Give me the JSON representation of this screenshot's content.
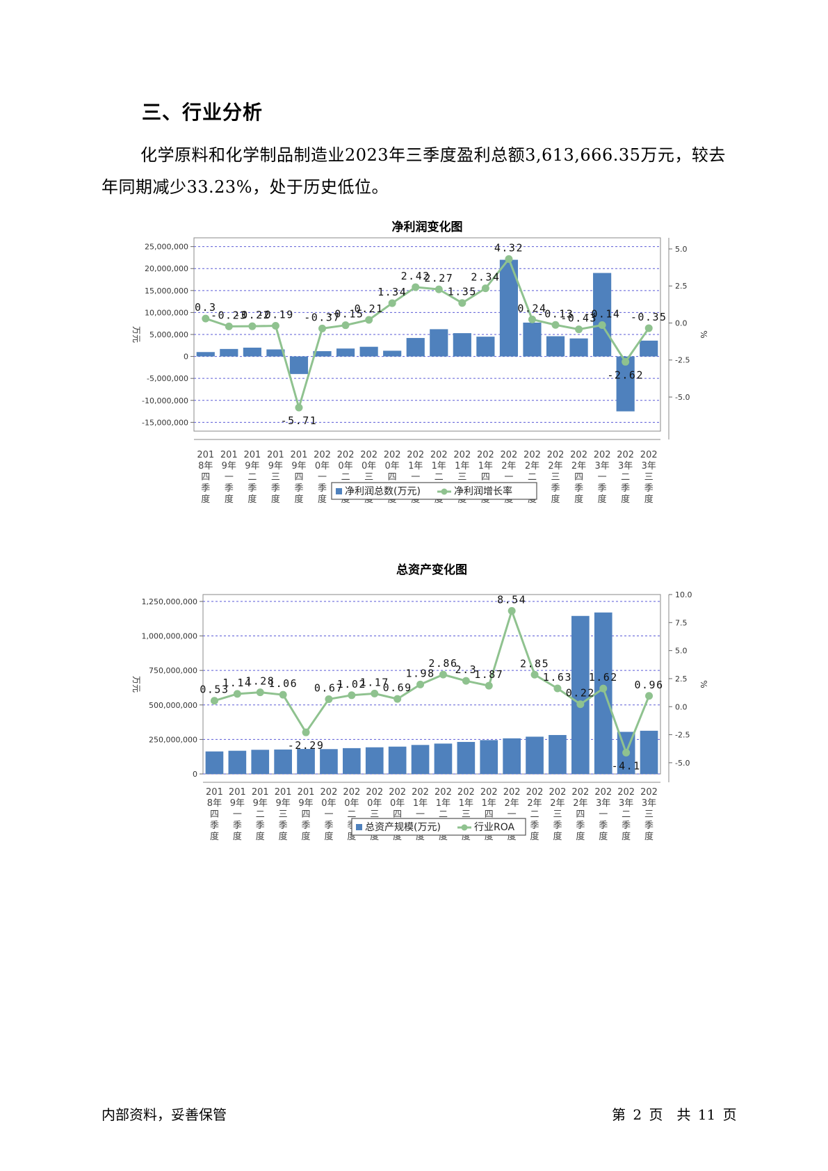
{
  "heading": "三、行业分析",
  "paragraph": "化学原料和化学制品制造业2023年三季度盈利总额3,613,666.35万元，较去年同期减少33.23%，处于历史低位。",
  "footer": {
    "left": "内部资料，妥善保管",
    "right": "第 2 页　共 11 页"
  },
  "chart_data": [
    {
      "type": "bar",
      "title": "净利润变化图",
      "ylabel": "万元",
      "y2label": "%",
      "categories": [
        "2018年四季度",
        "2019年一季度",
        "2019年二季度",
        "2019年三季度",
        "2019年四季度",
        "2020年一季度",
        "2020年二季度",
        "2020年三季度",
        "2020年四季度",
        "2021年一季度",
        "2021年二季度",
        "2021年三季度",
        "2021年四季度",
        "2022年一季度",
        "2022年二季度",
        "2022年三季度",
        "2022年四季度",
        "2023年一季度",
        "2023年二季度",
        "2023年三季度"
      ],
      "category_lines": [
        [
          "201",
          "8年",
          "四",
          "季",
          "度"
        ],
        [
          "201",
          "9年",
          "一",
          "季",
          "度"
        ],
        [
          "201",
          "9年",
          "二",
          "季",
          "度"
        ],
        [
          "201",
          "9年",
          "三",
          "季",
          "度"
        ],
        [
          "201",
          "9年",
          "四",
          "季",
          "度"
        ],
        [
          "202",
          "0年",
          "一",
          "季",
          "度"
        ],
        [
          "202",
          "0年",
          "二",
          "季",
          "度"
        ],
        [
          "202",
          "0年",
          "三",
          "季",
          "度"
        ],
        [
          "202",
          "0年",
          "四",
          "季",
          "度"
        ],
        [
          "202",
          "1年",
          "一",
          "季",
          "度"
        ],
        [
          "202",
          "1年",
          "二",
          "季",
          "度"
        ],
        [
          "202",
          "1年",
          "三",
          "季",
          "度"
        ],
        [
          "202",
          "1年",
          "四",
          "季",
          "度"
        ],
        [
          "202",
          "2年",
          "一",
          "季",
          "度"
        ],
        [
          "202",
          "2年",
          "二",
          "季",
          "度"
        ],
        [
          "202",
          "2年",
          "三",
          "季",
          "度"
        ],
        [
          "202",
          "2年",
          "四",
          "季",
          "度"
        ],
        [
          "202",
          "3年",
          "一",
          "季",
          "度"
        ],
        [
          "202",
          "3年",
          "二",
          "季",
          "度"
        ],
        [
          "202",
          "3年",
          "三",
          "季",
          "度"
        ]
      ],
      "series": [
        {
          "name": "净利润总数(万元)",
          "kind": "bar",
          "axis": "left",
          "color": "#4f81bd",
          "values": [
            1000000,
            1700000,
            2000000,
            1600000,
            -4000000,
            1200000,
            1800000,
            2200000,
            1300000,
            4200000,
            6200000,
            5300000,
            4500000,
            22000000,
            7700000,
            4600000,
            4100000,
            19000000,
            -12500000,
            3600000
          ]
        },
        {
          "name": "净利润增长率",
          "kind": "line",
          "axis": "right",
          "color": "#8fc28f",
          "values": [
            0.3,
            -0.23,
            -0.22,
            -0.19,
            -5.71,
            -0.37,
            -0.15,
            0.21,
            1.34,
            2.42,
            2.27,
            1.35,
            2.34,
            4.32,
            0.24,
            -0.13,
            -0.43,
            -0.14,
            -2.62,
            -0.35
          ],
          "labels": [
            "0.3",
            "-0.23",
            "-0.22",
            "-0.19",
            "-5.71",
            "-0.37",
            "-0.15",
            "0.21",
            "1.34",
            "2.42",
            "2.27",
            "1.35",
            "2.34",
            "4.32",
            "0.24",
            "-0.13",
            "-0.43",
            "-0.14",
            "-2.62",
            "-0.35"
          ]
        }
      ],
      "ylim": [
        -17000000,
        27000000
      ],
      "yticks": [
        -15000000,
        -10000000,
        -5000000,
        0,
        5000000,
        10000000,
        15000000,
        20000000,
        25000000
      ],
      "ytick_labels": [
        "-15,000,000",
        "-10,000,000",
        "-5,000,000",
        "0",
        "5,000,000",
        "10,000,000",
        "15,000,000",
        "20,000,000",
        "25,000,000"
      ],
      "y2lim": [
        -7.3,
        5.75
      ],
      "y2ticks": [
        -5.0,
        -2.5,
        0.0,
        2.5,
        5.0
      ],
      "y2tick_labels": [
        "-5.0",
        "-2.5",
        "0.0",
        "2.5",
        "5.0"
      ],
      "grid": true,
      "legend": "bottom"
    },
    {
      "type": "bar",
      "title": "总资产变化图",
      "ylabel": "万元",
      "y2label": "%",
      "categories": [
        "2018年四季度",
        "2019年一季度",
        "2019年二季度",
        "2019年三季度",
        "2019年四季度",
        "2020年一季度",
        "2020年二季度",
        "2020年三季度",
        "2020年四季度",
        "2021年一季度",
        "2021年二季度",
        "2021年三季度",
        "2021年四季度",
        "2022年一季度",
        "2022年二季度",
        "2022年三季度",
        "2022年四季度",
        "2023年一季度",
        "2023年二季度",
        "2023年三季度"
      ],
      "category_lines": [
        [
          "201",
          "8年",
          "四",
          "季",
          "度"
        ],
        [
          "201",
          "9年",
          "一",
          "季",
          "度"
        ],
        [
          "201",
          "9年",
          "二",
          "季",
          "度"
        ],
        [
          "201",
          "9年",
          "三",
          "季",
          "度"
        ],
        [
          "201",
          "9年",
          "四",
          "季",
          "度"
        ],
        [
          "202",
          "0年",
          "一",
          "季",
          "度"
        ],
        [
          "202",
          "0年",
          "二",
          "季",
          "度"
        ],
        [
          "202",
          "0年",
          "三",
          "季",
          "度"
        ],
        [
          "202",
          "0年",
          "四",
          "季",
          "度"
        ],
        [
          "202",
          "1年",
          "一",
          "季",
          "度"
        ],
        [
          "202",
          "1年",
          "二",
          "季",
          "度"
        ],
        [
          "202",
          "1年",
          "三",
          "季",
          "度"
        ],
        [
          "202",
          "1年",
          "四",
          "季",
          "度"
        ],
        [
          "202",
          "2年",
          "一",
          "季",
          "度"
        ],
        [
          "202",
          "2年",
          "二",
          "季",
          "度"
        ],
        [
          "202",
          "2年",
          "三",
          "季",
          "度"
        ],
        [
          "202",
          "2年",
          "四",
          "季",
          "度"
        ],
        [
          "202",
          "3年",
          "一",
          "季",
          "度"
        ],
        [
          "202",
          "3年",
          "二",
          "季",
          "度"
        ],
        [
          "202",
          "3年",
          "三",
          "季",
          "度"
        ]
      ],
      "series": [
        {
          "name": "总资产规模(万元)",
          "kind": "bar",
          "axis": "left",
          "color": "#4f81bd",
          "values": [
            163000000,
            168000000,
            175000000,
            177000000,
            181000000,
            180000000,
            187000000,
            193000000,
            198000000,
            210000000,
            220000000,
            232000000,
            245000000,
            258000000,
            270000000,
            282000000,
            1145000000,
            1170000000,
            305000000,
            313000000
          ]
        },
        {
          "name": "行业ROA",
          "kind": "line",
          "axis": "right",
          "color": "#8fc28f",
          "values": [
            0.53,
            1.14,
            1.28,
            1.06,
            -2.29,
            0.67,
            1.02,
            1.17,
            0.69,
            1.98,
            2.86,
            2.3,
            1.87,
            8.54,
            2.85,
            1.63,
            0.22,
            1.62,
            -4.1,
            0.96
          ],
          "labels": [
            "0.53",
            "1.14",
            "1.28",
            "1.06",
            "-2.29",
            "0.67",
            "1.02",
            "1.17",
            "0.69",
            "1.98",
            "2.86",
            "2.3",
            "1.87",
            "8.54",
            "2.85",
            "1.63",
            "0.22",
            "1.62",
            "-4.1",
            "0.96"
          ]
        }
      ],
      "ylim": [
        0,
        1300000000
      ],
      "yticks": [
        0,
        250000000,
        500000000,
        750000000,
        1000000000,
        1250000000
      ],
      "ytick_labels": [
        "0",
        "250,000,000",
        "500,000,000",
        "750,000,000",
        "1,000,000,000",
        "1,250,000,000"
      ],
      "y2lim": [
        -6.0,
        10.0
      ],
      "y2ticks": [
        -5.0,
        -2.5,
        0.0,
        2.5,
        5.0,
        7.5,
        10.0
      ],
      "y2tick_labels": [
        "-5.0",
        "-2.5",
        "0.0",
        "2.5",
        "5.0",
        "7.5",
        "10.0"
      ],
      "grid": true,
      "legend": "bottom"
    }
  ]
}
